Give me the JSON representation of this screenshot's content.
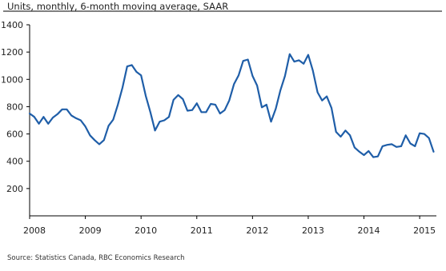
{
  "chart_data": {
    "type": "line",
    "subtitle": "Units, monthly, 6-month moving average, SAAR",
    "source": "Source: Statistics Canada, RBC Economics Research",
    "ylim": [
      0,
      1400
    ],
    "yticks": [
      "200",
      "400",
      "600",
      "800",
      "1000",
      "1200",
      "1400"
    ],
    "xlim": [
      2008.0,
      2015.3
    ],
    "xticks": [
      "2008",
      "2009",
      "2010",
      "2011",
      "2012",
      "2013",
      "2014",
      "2015"
    ],
    "grid": false,
    "line_color": "#1f5ea8",
    "series": [
      {
        "x": [
          2008.0,
          2008.083,
          2008.167,
          2008.25,
          2008.333,
          2008.417,
          2008.5,
          2008.583,
          2008.667,
          2008.75,
          2008.833,
          2008.917,
          2009.0,
          2009.083,
          2009.167,
          2009.25,
          2009.333,
          2009.417,
          2009.5,
          2009.583,
          2009.667,
          2009.75,
          2009.833,
          2009.917,
          2010.0,
          2010.083,
          2010.167,
          2010.25,
          2010.333,
          2010.417,
          2010.5,
          2010.583,
          2010.667,
          2010.75,
          2010.833,
          2010.917,
          2011.0,
          2011.083,
          2011.167,
          2011.25,
          2011.333,
          2011.417,
          2011.5,
          2011.583,
          2011.667,
          2011.75,
          2011.833,
          2011.917,
          2012.0,
          2012.083,
          2012.167,
          2012.25,
          2012.333,
          2012.417,
          2012.5,
          2012.583,
          2012.667,
          2012.75,
          2012.833,
          2012.917,
          2013.0,
          2013.083,
          2013.167,
          2013.25,
          2013.333,
          2013.417,
          2013.5,
          2013.583,
          2013.667,
          2013.75,
          2013.833,
          2013.917,
          2014.0,
          2014.083,
          2014.167,
          2014.25,
          2014.333,
          2014.417,
          2014.5,
          2014.583,
          2014.667,
          2014.75,
          2014.833,
          2014.917,
          2015.0,
          2015.083,
          2015.167,
          2015.25
        ],
        "values": [
          750,
          725,
          675,
          725,
          675,
          720,
          745,
          780,
          780,
          735,
          715,
          700,
          655,
          590,
          555,
          525,
          555,
          660,
          705,
          815,
          940,
          1095,
          1105,
          1055,
          1030,
          880,
          760,
          625,
          690,
          700,
          725,
          850,
          885,
          855,
          770,
          775,
          825,
          760,
          760,
          820,
          815,
          750,
          775,
          845,
          965,
          1030,
          1135,
          1145,
          1025,
          955,
          795,
          815,
          690,
          785,
          920,
          1025,
          1185,
          1130,
          1140,
          1115,
          1180,
          1065,
          905,
          845,
          875,
          790,
          615,
          580,
          625,
          590,
          500,
          470,
          445,
          475,
          430,
          435,
          510,
          520,
          525,
          505,
          510,
          590,
          530,
          510,
          605,
          600,
          570,
          470
        ]
      }
    ]
  }
}
